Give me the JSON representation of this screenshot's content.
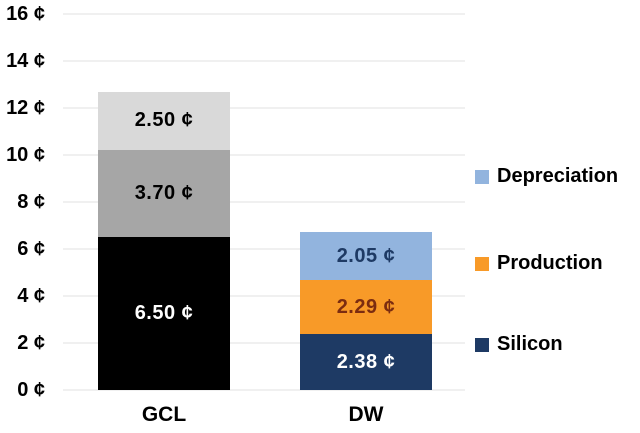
{
  "chart_data": {
    "type": "bar",
    "subtype": "stacked",
    "title": "",
    "unit": "¢",
    "categories": [
      "GCL",
      "DW"
    ],
    "y_axis": {
      "min": 0,
      "max": 16,
      "step": 2,
      "ticks": [
        "0 ¢",
        "2 ¢",
        "4 ¢",
        "6 ¢",
        "8 ¢",
        "10 ¢",
        "12 ¢",
        "14 ¢",
        "16 ¢"
      ]
    },
    "grid": true,
    "series": [
      {
        "name": "Silicon",
        "values": [
          6.5,
          2.38
        ],
        "labels": [
          "6.50 ¢",
          "2.38 ¢"
        ],
        "bar_colors": [
          "#000000",
          "#1E3A64"
        ],
        "label_colors": [
          "#ffffff",
          "#ffffff"
        ]
      },
      {
        "name": "Production",
        "values": [
          3.7,
          2.29
        ],
        "labels": [
          "3.70 ¢",
          "2.29 ¢"
        ],
        "bar_colors": [
          "#A6A6A6",
          "#F89A28"
        ],
        "label_colors": [
          "#000000",
          "#7B2C10"
        ]
      },
      {
        "name": "Depreciation",
        "values": [
          2.5,
          2.05
        ],
        "labels": [
          "2.50 ¢",
          "2.05 ¢"
        ],
        "bar_colors": [
          "#D9D9D9",
          "#92B4DE"
        ],
        "label_colors": [
          "#000000",
          "#1E3A64"
        ]
      }
    ],
    "legend": {
      "position": "right",
      "items": [
        {
          "label": "Depreciation",
          "color": "#92B4DE"
        },
        {
          "label": "Production",
          "color": "#F89A28"
        },
        {
          "label": "Silicon",
          "color": "#1E3A64"
        }
      ]
    }
  }
}
